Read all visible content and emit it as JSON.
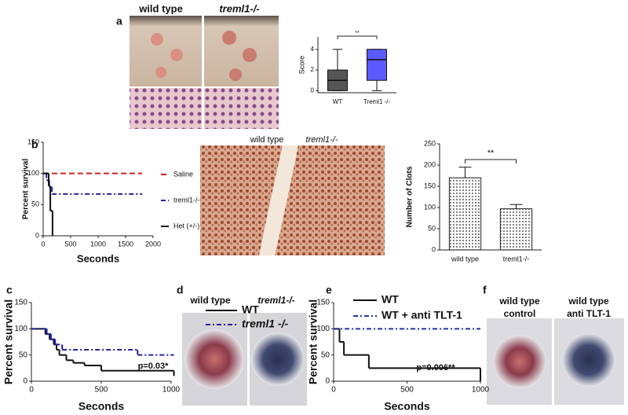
{
  "panel_labels": [
    "a",
    "b",
    "c",
    "d",
    "e",
    "f"
  ],
  "image_labels": {
    "a": [
      "wild type",
      "treml1-/-"
    ],
    "b": [
      "wild type",
      "treml1-/-"
    ],
    "d": [
      "wild type",
      "treml1-/-"
    ],
    "f": [
      [
        "wild type",
        "control"
      ],
      [
        "wild type",
        "anti TLT-1"
      ]
    ]
  },
  "chart_data": [
    {
      "type": "box",
      "ylabel": "Score",
      "categories": [
        "WT",
        "Treml1 -/-"
      ],
      "boxes": [
        {
          "min": 0,
          "q1": 0,
          "median": 1,
          "q3": 2,
          "max": 4
        },
        {
          "min": 0,
          "q1": 1,
          "median": 3,
          "q3": 4,
          "max": 4
        }
      ],
      "colors": [
        "#555555",
        "#5a5aff"
      ],
      "ylim": [
        -0.2,
        5.2
      ],
      "yticks": [
        0,
        2,
        4
      ],
      "annotation": "**"
    },
    {
      "type": "line",
      "step": true,
      "ylabel": "Percent survival",
      "xlabel": "Seconds",
      "xlim": [
        0,
        2000
      ],
      "xticks": [
        0,
        500,
        1000,
        1500,
        2000
      ],
      "ylim": [
        0,
        150
      ],
      "yticks": [
        0,
        50,
        100,
        150
      ],
      "series": [
        {
          "name": "Saline",
          "color": "#cc2222",
          "style": "dashed",
          "x": [
            0,
            1800
          ],
          "values": [
            100,
            100
          ]
        },
        {
          "name": "treml1-/-",
          "color": "#22229a",
          "style": "dash-dot",
          "x": [
            0,
            60,
            110,
            160,
            1800
          ],
          "values": [
            100,
            89,
            78,
            67,
            67
          ]
        },
        {
          "name": "Het (+/-)",
          "color": "#111111",
          "style": "solid",
          "x": [
            0,
            100,
            130,
            170
          ],
          "values": [
            100,
            80,
            40,
            0
          ]
        }
      ]
    },
    {
      "type": "bar",
      "ylabel": "Number of Clots",
      "categories": [
        "wild type",
        "treml1-/-"
      ],
      "values": [
        170,
        97
      ],
      "errors": [
        25,
        10
      ],
      "color": "#777777",
      "ylim": [
        0,
        250
      ],
      "yticks": [
        0,
        50,
        100,
        150,
        200,
        250
      ],
      "annotation": "**"
    },
    {
      "type": "line",
      "step": true,
      "ylabel": "Percent survival",
      "xlabel": "Seconds",
      "xlim": [
        0,
        1000
      ],
      "xticks": [
        0,
        500,
        1000
      ],
      "ylim": [
        0,
        150
      ],
      "yticks": [
        0,
        50,
        100,
        150
      ],
      "annotation": "p=0.03*",
      "series": [
        {
          "name": "WT",
          "color": "#111111",
          "style": "solid",
          "x": [
            0,
            100,
            130,
            160,
            180,
            200,
            250,
            300,
            380,
            500,
            1020
          ],
          "values": [
            100,
            90,
            80,
            70,
            60,
            50,
            40,
            35,
            30,
            20,
            10
          ]
        },
        {
          "name": "treml1 -/-",
          "color": "#2222aa",
          "style": "dash-dot",
          "x": [
            0,
            110,
            140,
            170,
            220,
            760,
            1020
          ],
          "values": [
            100,
            90,
            80,
            70,
            60,
            50,
            50
          ]
        }
      ]
    },
    {
      "type": "line",
      "step": true,
      "ylabel": "Percent survival",
      "xlabel": "Seconds",
      "xlim": [
        0,
        1000
      ],
      "xticks": [
        0,
        500,
        1000
      ],
      "ylim": [
        0,
        150
      ],
      "yticks": [
        0,
        50,
        100,
        150
      ],
      "annotation": "p=0.006**",
      "series": [
        {
          "name": "WT",
          "color": "#111111",
          "style": "solid",
          "x": [
            0,
            40,
            70,
            240,
            1000
          ],
          "values": [
            100,
            75,
            50,
            25,
            0
          ]
        },
        {
          "name": "WT + anti TLT-1",
          "color": "#2233aa",
          "style": "dash-dot",
          "x": [
            0,
            1000
          ],
          "values": [
            100,
            100
          ]
        }
      ]
    }
  ]
}
